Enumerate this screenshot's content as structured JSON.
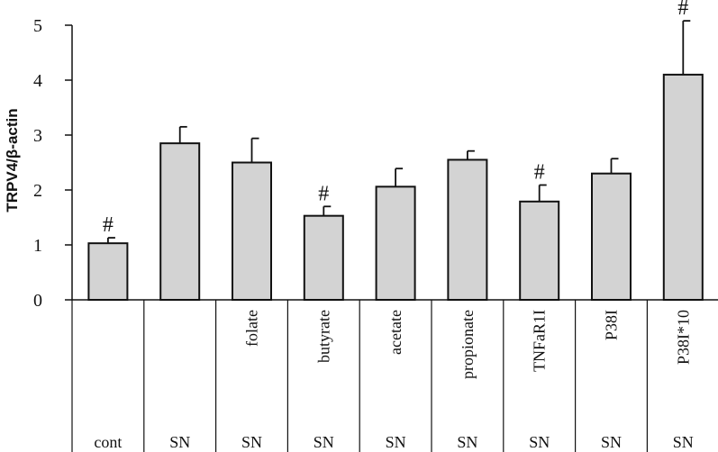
{
  "chart_data": {
    "type": "bar",
    "ylabel": "TRPV4/β-actin",
    "ylim": [
      0,
      5
    ],
    "yticks": [
      0,
      1,
      2,
      3,
      4,
      5
    ],
    "grid": false,
    "categories": [
      {
        "top": "",
        "bottom": "cont"
      },
      {
        "top": "",
        "bottom": "SN"
      },
      {
        "top": "folate",
        "bottom": "SN"
      },
      {
        "top": "butyrate",
        "bottom": "SN"
      },
      {
        "top": "acetate",
        "bottom": "SN"
      },
      {
        "top": "propionate",
        "bottom": "SN"
      },
      {
        "top": "TNFaR1I",
        "bottom": "SN"
      },
      {
        "top": "P38I",
        "bottom": "SN"
      },
      {
        "top": "P38I*10",
        "bottom": "SN"
      }
    ],
    "values": [
      1.03,
      2.85,
      2.5,
      1.53,
      2.06,
      2.55,
      1.79,
      2.3,
      4.1
    ],
    "errors": [
      0.1,
      0.3,
      0.44,
      0.17,
      0.33,
      0.16,
      0.3,
      0.27,
      0.98
    ],
    "annotations": [
      "#",
      "",
      "",
      "#",
      "",
      "",
      "#",
      "",
      "#"
    ],
    "colors": {
      "bar_fill": "#d3d3d3",
      "bar_stroke": "#111111"
    }
  }
}
